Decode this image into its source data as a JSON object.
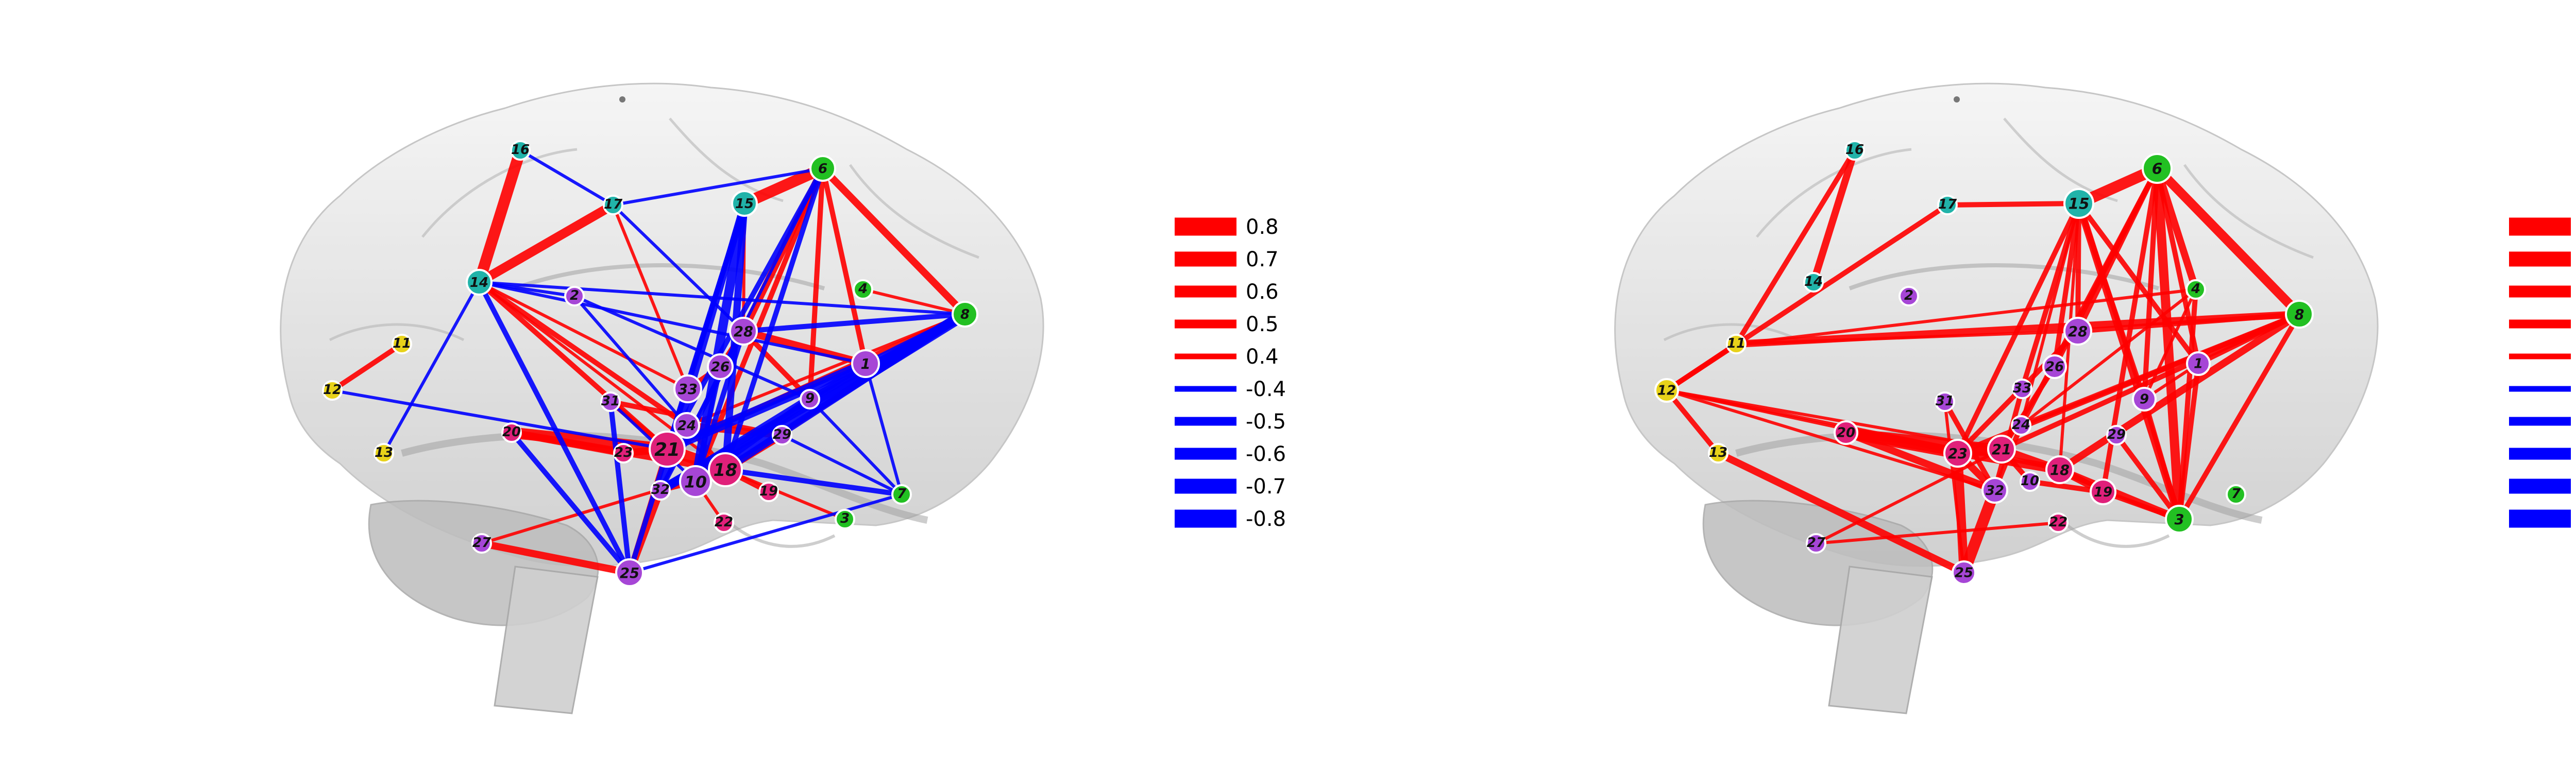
{
  "colors": {
    "positive": "#ff0000",
    "negative": "#0000ff",
    "teal": "#21b3a9",
    "green": "#22c022",
    "yellow": "#e8d21a",
    "purple": "#a646d6",
    "magenta": "#e0207a"
  },
  "legend": {
    "items": [
      {
        "label": "0.8",
        "value": 0.8
      },
      {
        "label": "0.7",
        "value": 0.7
      },
      {
        "label": "0.6",
        "value": 0.6
      },
      {
        "label": "0.5",
        "value": 0.5
      },
      {
        "label": "0.4",
        "value": 0.4
      },
      {
        "label": "-0.4",
        "value": -0.4
      },
      {
        "label": "-0.5",
        "value": -0.5
      },
      {
        "label": "-0.6",
        "value": -0.6
      },
      {
        "label": "-0.7",
        "value": -0.7
      },
      {
        "label": "-0.8",
        "value": -0.8
      }
    ]
  },
  "panels": [
    {
      "name": "left-panel",
      "nodes": [
        {
          "id": "1",
          "color": "purple"
        },
        {
          "id": "2",
          "color": "purple"
        },
        {
          "id": "3",
          "color": "green"
        },
        {
          "id": "4",
          "color": "green"
        },
        {
          "id": "6",
          "color": "green"
        },
        {
          "id": "7",
          "color": "green"
        },
        {
          "id": "8",
          "color": "green"
        },
        {
          "id": "9",
          "color": "purple"
        },
        {
          "id": "10",
          "color": "purple"
        },
        {
          "id": "11",
          "color": "yellow"
        },
        {
          "id": "12",
          "color": "yellow"
        },
        {
          "id": "13",
          "color": "yellow"
        },
        {
          "id": "14",
          "color": "teal"
        },
        {
          "id": "15",
          "color": "teal"
        },
        {
          "id": "16",
          "color": "teal"
        },
        {
          "id": "17",
          "color": "teal"
        },
        {
          "id": "18",
          "color": "magenta"
        },
        {
          "id": "19",
          "color": "magenta"
        },
        {
          "id": "20",
          "color": "magenta"
        },
        {
          "id": "21",
          "color": "magenta"
        },
        {
          "id": "22",
          "color": "magenta"
        },
        {
          "id": "23",
          "color": "magenta"
        },
        {
          "id": "24",
          "color": "purple"
        },
        {
          "id": "25",
          "color": "purple"
        },
        {
          "id": "26",
          "color": "purple"
        },
        {
          "id": "27",
          "color": "purple"
        },
        {
          "id": "28",
          "color": "purple"
        },
        {
          "id": "29",
          "color": "purple"
        },
        {
          "id": "31",
          "color": "purple"
        },
        {
          "id": "32",
          "color": "purple"
        },
        {
          "id": "33",
          "color": "purple"
        }
      ],
      "edges": [
        [
          "16",
          "14",
          0.8
        ],
        [
          "14",
          "17",
          0.7
        ],
        [
          "6",
          "15",
          0.8
        ],
        [
          "6",
          "8",
          0.6
        ],
        [
          "6",
          "28",
          0.6
        ],
        [
          "6",
          "1",
          0.5
        ],
        [
          "6",
          "9",
          0.5
        ],
        [
          "6",
          "10",
          0.5
        ],
        [
          "15",
          "33",
          0.4
        ],
        [
          "15",
          "28",
          0.4
        ],
        [
          "17",
          "33",
          0.4
        ],
        [
          "14",
          "24",
          0.5
        ],
        [
          "14",
          "21",
          0.5
        ],
        [
          "14",
          "18",
          0.4
        ],
        [
          "14",
          "33",
          0.4
        ],
        [
          "12",
          "11",
          0.5
        ],
        [
          "20",
          "21",
          0.8
        ],
        [
          "20",
          "18",
          0.6
        ],
        [
          "20",
          "23",
          0.6
        ],
        [
          "23",
          "21",
          0.6
        ],
        [
          "21",
          "18",
          0.8
        ],
        [
          "18",
          "29",
          0.6
        ],
        [
          "24",
          "29",
          0.6
        ],
        [
          "24",
          "18",
          0.5
        ],
        [
          "31",
          "29",
          0.5
        ],
        [
          "31",
          "21",
          0.5
        ],
        [
          "28",
          "1",
          0.6
        ],
        [
          "28",
          "9",
          0.5
        ],
        [
          "33",
          "26",
          0.5
        ],
        [
          "26",
          "28",
          0.5
        ],
        [
          "27",
          "25",
          0.6
        ],
        [
          "25",
          "32",
          0.6
        ],
        [
          "25",
          "21",
          0.5
        ],
        [
          "18",
          "19",
          0.5
        ],
        [
          "18",
          "3",
          0.4
        ],
        [
          "8",
          "4",
          0.4
        ],
        [
          "8",
          "21",
          0.5
        ],
        [
          "8",
          "18",
          0.5
        ],
        [
          "8",
          "24",
          0.4
        ],
        [
          "10",
          "18",
          0.6
        ],
        [
          "32",
          "10",
          0.5
        ],
        [
          "10",
          "22",
          0.4
        ],
        [
          "27",
          "18",
          0.4
        ],
        [
          "16",
          "17",
          -0.4
        ],
        [
          "14",
          "13",
          -0.4
        ],
        [
          "14",
          "2",
          -0.4
        ],
        [
          "14",
          "1",
          -0.4
        ],
        [
          "14",
          "8",
          -0.4
        ],
        [
          "14",
          "25",
          -0.5
        ],
        [
          "17",
          "6",
          -0.4
        ],
        [
          "17",
          "28",
          -0.4
        ],
        [
          "15",
          "10",
          -0.7
        ],
        [
          "15",
          "18",
          -0.6
        ],
        [
          "15",
          "21",
          -0.5
        ],
        [
          "15",
          "25",
          -0.5
        ],
        [
          "15",
          "32",
          -0.6
        ],
        [
          "6",
          "21",
          -0.5
        ],
        [
          "6",
          "18",
          -0.5
        ],
        [
          "6",
          "32",
          -0.4
        ],
        [
          "8",
          "10",
          -0.8
        ],
        [
          "8",
          "32",
          -0.7
        ],
        [
          "8",
          "9",
          -0.6
        ],
        [
          "8",
          "1",
          -0.5
        ],
        [
          "8",
          "28",
          -0.5
        ],
        [
          "8",
          "18",
          -0.6
        ],
        [
          "1",
          "21",
          -0.7
        ],
        [
          "1",
          "32",
          -0.6
        ],
        [
          "1",
          "7",
          -0.4
        ],
        [
          "9",
          "10",
          -0.6
        ],
        [
          "9",
          "7",
          -0.4
        ],
        [
          "28",
          "10",
          -0.5
        ],
        [
          "28",
          "32",
          -0.5
        ],
        [
          "2",
          "24",
          -0.4
        ],
        [
          "2",
          "9",
          -0.4
        ],
        [
          "31",
          "10",
          -0.4
        ],
        [
          "31",
          "25",
          -0.5
        ],
        [
          "12",
          "21",
          -0.4
        ],
        [
          "20",
          "25",
          -0.5
        ],
        [
          "26",
          "10",
          -0.5
        ],
        [
          "29",
          "7",
          -0.4
        ],
        [
          "25",
          "7",
          -0.4
        ],
        [
          "18",
          "7",
          -0.5
        ],
        [
          "21",
          "1",
          -0.4
        ]
      ]
    },
    {
      "name": "right-panel",
      "nodes": [
        {
          "id": "1",
          "color": "purple"
        },
        {
          "id": "2",
          "color": "purple"
        },
        {
          "id": "3",
          "color": "green"
        },
        {
          "id": "4",
          "color": "green"
        },
        {
          "id": "6",
          "color": "green"
        },
        {
          "id": "7",
          "color": "green"
        },
        {
          "id": "8",
          "color": "green"
        },
        {
          "id": "9",
          "color": "purple"
        },
        {
          "id": "10",
          "color": "purple"
        },
        {
          "id": "11",
          "color": "yellow"
        },
        {
          "id": "12",
          "color": "yellow"
        },
        {
          "id": "13",
          "color": "yellow"
        },
        {
          "id": "14",
          "color": "teal"
        },
        {
          "id": "15",
          "color": "teal"
        },
        {
          "id": "16",
          "color": "teal"
        },
        {
          "id": "17",
          "color": "teal"
        },
        {
          "id": "18",
          "color": "magenta"
        },
        {
          "id": "19",
          "color": "magenta"
        },
        {
          "id": "20",
          "color": "magenta"
        },
        {
          "id": "21",
          "color": "magenta"
        },
        {
          "id": "22",
          "color": "magenta"
        },
        {
          "id": "23",
          "color": "magenta"
        },
        {
          "id": "24",
          "color": "purple"
        },
        {
          "id": "25",
          "color": "purple"
        },
        {
          "id": "26",
          "color": "purple"
        },
        {
          "id": "27",
          "color": "purple"
        },
        {
          "id": "28",
          "color": "purple"
        },
        {
          "id": "29",
          "color": "purple"
        },
        {
          "id": "31",
          "color": "purple"
        },
        {
          "id": "32",
          "color": "purple"
        },
        {
          "id": "33",
          "color": "purple"
        }
      ],
      "edges": [
        [
          "16",
          "14",
          0.6
        ],
        [
          "16",
          "11",
          0.5
        ],
        [
          "17",
          "15",
          0.5
        ],
        [
          "17",
          "12",
          0.5
        ],
        [
          "15",
          "6",
          0.8
        ],
        [
          "6",
          "8",
          0.7
        ],
        [
          "6",
          "3",
          0.7
        ],
        [
          "6",
          "4",
          0.6
        ],
        [
          "6",
          "28",
          0.5
        ],
        [
          "6",
          "1",
          0.5
        ],
        [
          "6",
          "9",
          0.5
        ],
        [
          "6",
          "26",
          0.5
        ],
        [
          "6",
          "24",
          0.5
        ],
        [
          "6",
          "19",
          0.5
        ],
        [
          "15",
          "3",
          0.6
        ],
        [
          "15",
          "28",
          0.5
        ],
        [
          "15",
          "26",
          0.5
        ],
        [
          "15",
          "24",
          0.4
        ],
        [
          "15",
          "33",
          0.5
        ],
        [
          "15",
          "23",
          0.5
        ],
        [
          "15",
          "9",
          0.5
        ],
        [
          "15",
          "1",
          0.5
        ],
        [
          "15",
          "18",
          0.4
        ],
        [
          "11",
          "8",
          0.6
        ],
        [
          "11",
          "4",
          0.4
        ],
        [
          "11",
          "28",
          0.4
        ],
        [
          "11",
          "12",
          0.5
        ],
        [
          "12",
          "13",
          0.5
        ],
        [
          "12",
          "21",
          0.4
        ],
        [
          "12",
          "23",
          0.4
        ],
        [
          "12",
          "32",
          0.4
        ],
        [
          "12",
          "18",
          0.4
        ],
        [
          "13",
          "25",
          0.6
        ],
        [
          "27",
          "21",
          0.4
        ],
        [
          "27",
          "22",
          0.4
        ],
        [
          "8",
          "1",
          0.5
        ],
        [
          "8",
          "24",
          0.5
        ],
        [
          "8",
          "28",
          0.5
        ],
        [
          "8",
          "18",
          0.6
        ],
        [
          "8",
          "3",
          0.5
        ],
        [
          "8",
          "23",
          0.5
        ],
        [
          "8",
          "21",
          0.5
        ],
        [
          "4",
          "3",
          0.5
        ],
        [
          "4",
          "24",
          0.4
        ],
        [
          "4",
          "9",
          0.4
        ],
        [
          "1",
          "3",
          0.5
        ],
        [
          "1",
          "9",
          0.4
        ],
        [
          "20",
          "23",
          0.8
        ],
        [
          "20",
          "18",
          0.7
        ],
        [
          "20",
          "21",
          0.7
        ],
        [
          "20",
          "32",
          0.6
        ],
        [
          "23",
          "21",
          0.7
        ],
        [
          "23",
          "32",
          0.6
        ],
        [
          "21",
          "18",
          0.6
        ],
        [
          "21",
          "10",
          0.5
        ],
        [
          "18",
          "19",
          0.6
        ],
        [
          "18",
          "3",
          0.6
        ],
        [
          "10",
          "19",
          0.5
        ],
        [
          "32",
          "25",
          0.8
        ],
        [
          "23",
          "25",
          0.7
        ],
        [
          "33",
          "32",
          0.5
        ],
        [
          "26",
          "21",
          0.5
        ],
        [
          "28",
          "23",
          0.5
        ],
        [
          "31",
          "25",
          0.4
        ],
        [
          "31",
          "32",
          0.5
        ],
        [
          "24",
          "32",
          0.5
        ],
        [
          "29",
          "3",
          0.5
        ],
        [
          "9",
          "3",
          0.5
        ],
        [
          "19",
          "3",
          0.5
        ]
      ]
    }
  ]
}
